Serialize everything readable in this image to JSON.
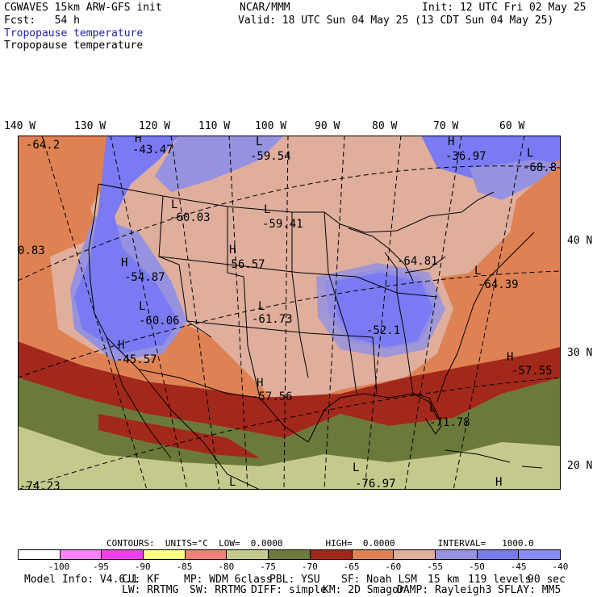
{
  "header": {
    "title_left": "CGWAVES 15km ARW-GFS init",
    "forecast": "Fcst:   54 h",
    "center": "NCAR/MMM",
    "init": "Init: 12 UTC Fri 02 May 25",
    "valid": "Valid: 18 UTC Sun 04 May 25 (13 CDT Sun 04 May 25)",
    "field_line_1": "Tropopause temperature",
    "field_line_2": "Tropopause temperature"
  },
  "map": {
    "longitude_labels": [
      "140 W",
      "130 W",
      "120 W",
      "110 W",
      "100 W",
      "90 W",
      "80 W",
      "70 W",
      "60 W"
    ],
    "latitude_labels": [
      "40 N",
      "30 N",
      "20 N"
    ],
    "markers": [
      {
        "letter": "",
        "value": "-64.2"
      },
      {
        "letter": "H",
        "value": "-43.47"
      },
      {
        "letter": "L",
        "value": "-59.54"
      },
      {
        "letter": "H",
        "value": "-36.97"
      },
      {
        "letter": "L",
        "value": "-68.8"
      },
      {
        "letter": "L",
        "value": "-60.03"
      },
      {
        "letter": "L",
        "value": "-59.41"
      },
      {
        "letter": "",
        "value": "0.83"
      },
      {
        "letter": "H",
        "value": "-56.57"
      },
      {
        "letter": "H",
        "value": "-54.87"
      },
      {
        "letter": "",
        "value": "-64.81"
      },
      {
        "letter": "L",
        "value": "-64.39"
      },
      {
        "letter": "L",
        "value": "-60.06"
      },
      {
        "letter": "L",
        "value": "-61.73"
      },
      {
        "letter": "",
        "value": "-52.1"
      },
      {
        "letter": "H",
        "value": "-45.57"
      },
      {
        "letter": "H",
        "value": "-57.55"
      },
      {
        "letter": "H",
        "value": "-57.56"
      },
      {
        "letter": "L",
        "value": "-71.78"
      },
      {
        "letter": "L",
        "value": "-76.97"
      },
      {
        "letter": "",
        "value": "-74.23"
      },
      {
        "letter": "L",
        "value": ""
      },
      {
        "letter": "H",
        "value": ""
      }
    ],
    "shading_colors": {
      "very_light_green": "#c6c98c",
      "olive": "#6b7a3a",
      "dark_red": "#a3281c",
      "orange": "#de8254",
      "salmon": "#dfae9c",
      "lavender": "#9692e0",
      "blue": "#7a7af2"
    }
  },
  "contours": {
    "caption": "CONTOURS:  UNITS=°C  LOW=  0.0000        HIGH=  0.0000        INTERVAL=   1000.0"
  },
  "colorbar": {
    "segments": [
      "#ffffff",
      "#ff80ff",
      "#ee40ee",
      "#ffff80",
      "#f08078",
      "#c6c98c",
      "#6b7a3a",
      "#a3281c",
      "#de8254",
      "#dfae9c",
      "#9692e0",
      "#7a7af2",
      "#8a8aff"
    ],
    "labels": [
      "-100",
      "-95",
      "-90",
      "-85",
      "-80",
      "-75",
      "-70",
      "-65",
      "-60",
      "-55",
      "-50",
      "-45",
      "-40",
      "°C"
    ]
  },
  "model_info": {
    "line1": [
      "Model Info: V4.6.1",
      "CU: KF",
      "MP: WDM 6class",
      "PBL: YSU",
      "SF: Noah LSM",
      "15 km",
      "119 levels",
      "90 sec"
    ],
    "line2": [
      "LW: RRTMG",
      "SW: RRTMG",
      "DIFF: simple",
      "KM: 2D Smagor",
      "DAMP: Rayleigh3",
      "SFLAY: MM5"
    ]
  }
}
